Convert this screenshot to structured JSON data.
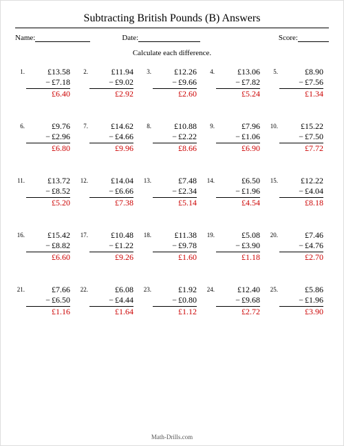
{
  "title": "Subtracting British Pounds (B) Answers",
  "header": {
    "name_label": "Name:",
    "date_label": "Date:",
    "score_label": "Score:"
  },
  "instruction": "Calculate each difference.",
  "currency": "£",
  "footer": "Math-Drills.com",
  "colors": {
    "answer": "#cc0000",
    "text": "#000000",
    "background": "#ffffff"
  },
  "problems": [
    {
      "n": "1.",
      "a": "£13.58",
      "b": "£7.18",
      "ans": "£6.40"
    },
    {
      "n": "2.",
      "a": "£11.94",
      "b": "£9.02",
      "ans": "£2.92"
    },
    {
      "n": "3.",
      "a": "£12.26",
      "b": "£9.66",
      "ans": "£2.60"
    },
    {
      "n": "4.",
      "a": "£13.06",
      "b": "£7.82",
      "ans": "£5.24"
    },
    {
      "n": "5.",
      "a": "£8.90",
      "b": "£7.56",
      "ans": "£1.34"
    },
    {
      "n": "6.",
      "a": "£9.76",
      "b": "£2.96",
      "ans": "£6.80"
    },
    {
      "n": "7.",
      "a": "£14.62",
      "b": "£4.66",
      "ans": "£9.96"
    },
    {
      "n": "8.",
      "a": "£10.88",
      "b": "£2.22",
      "ans": "£8.66"
    },
    {
      "n": "9.",
      "a": "£7.96",
      "b": "£1.06",
      "ans": "£6.90"
    },
    {
      "n": "10.",
      "a": "£15.22",
      "b": "£7.50",
      "ans": "£7.72"
    },
    {
      "n": "11.",
      "a": "£13.72",
      "b": "£8.52",
      "ans": "£5.20"
    },
    {
      "n": "12.",
      "a": "£14.04",
      "b": "£6.66",
      "ans": "£7.38"
    },
    {
      "n": "13.",
      "a": "£7.48",
      "b": "£2.34",
      "ans": "£5.14"
    },
    {
      "n": "14.",
      "a": "£6.50",
      "b": "£1.96",
      "ans": "£4.54"
    },
    {
      "n": "15.",
      "a": "£12.22",
      "b": "£4.04",
      "ans": "£8.18"
    },
    {
      "n": "16.",
      "a": "£15.42",
      "b": "£8.82",
      "ans": "£6.60"
    },
    {
      "n": "17.",
      "a": "£10.48",
      "b": "£1.22",
      "ans": "£9.26"
    },
    {
      "n": "18.",
      "a": "£11.38",
      "b": "£9.78",
      "ans": "£1.60"
    },
    {
      "n": "19.",
      "a": "£5.08",
      "b": "£3.90",
      "ans": "£1.18"
    },
    {
      "n": "20.",
      "a": "£7.46",
      "b": "£4.76",
      "ans": "£2.70"
    },
    {
      "n": "21.",
      "a": "£7.66",
      "b": "£6.50",
      "ans": "£1.16"
    },
    {
      "n": "22.",
      "a": "£6.08",
      "b": "£4.44",
      "ans": "£1.64"
    },
    {
      "n": "23.",
      "a": "£1.92",
      "b": "£0.80",
      "ans": "£1.12"
    },
    {
      "n": "24.",
      "a": "£12.40",
      "b": "£9.68",
      "ans": "£2.72"
    },
    {
      "n": "25.",
      "a": "£5.86",
      "b": "£1.96",
      "ans": "£3.90"
    }
  ]
}
